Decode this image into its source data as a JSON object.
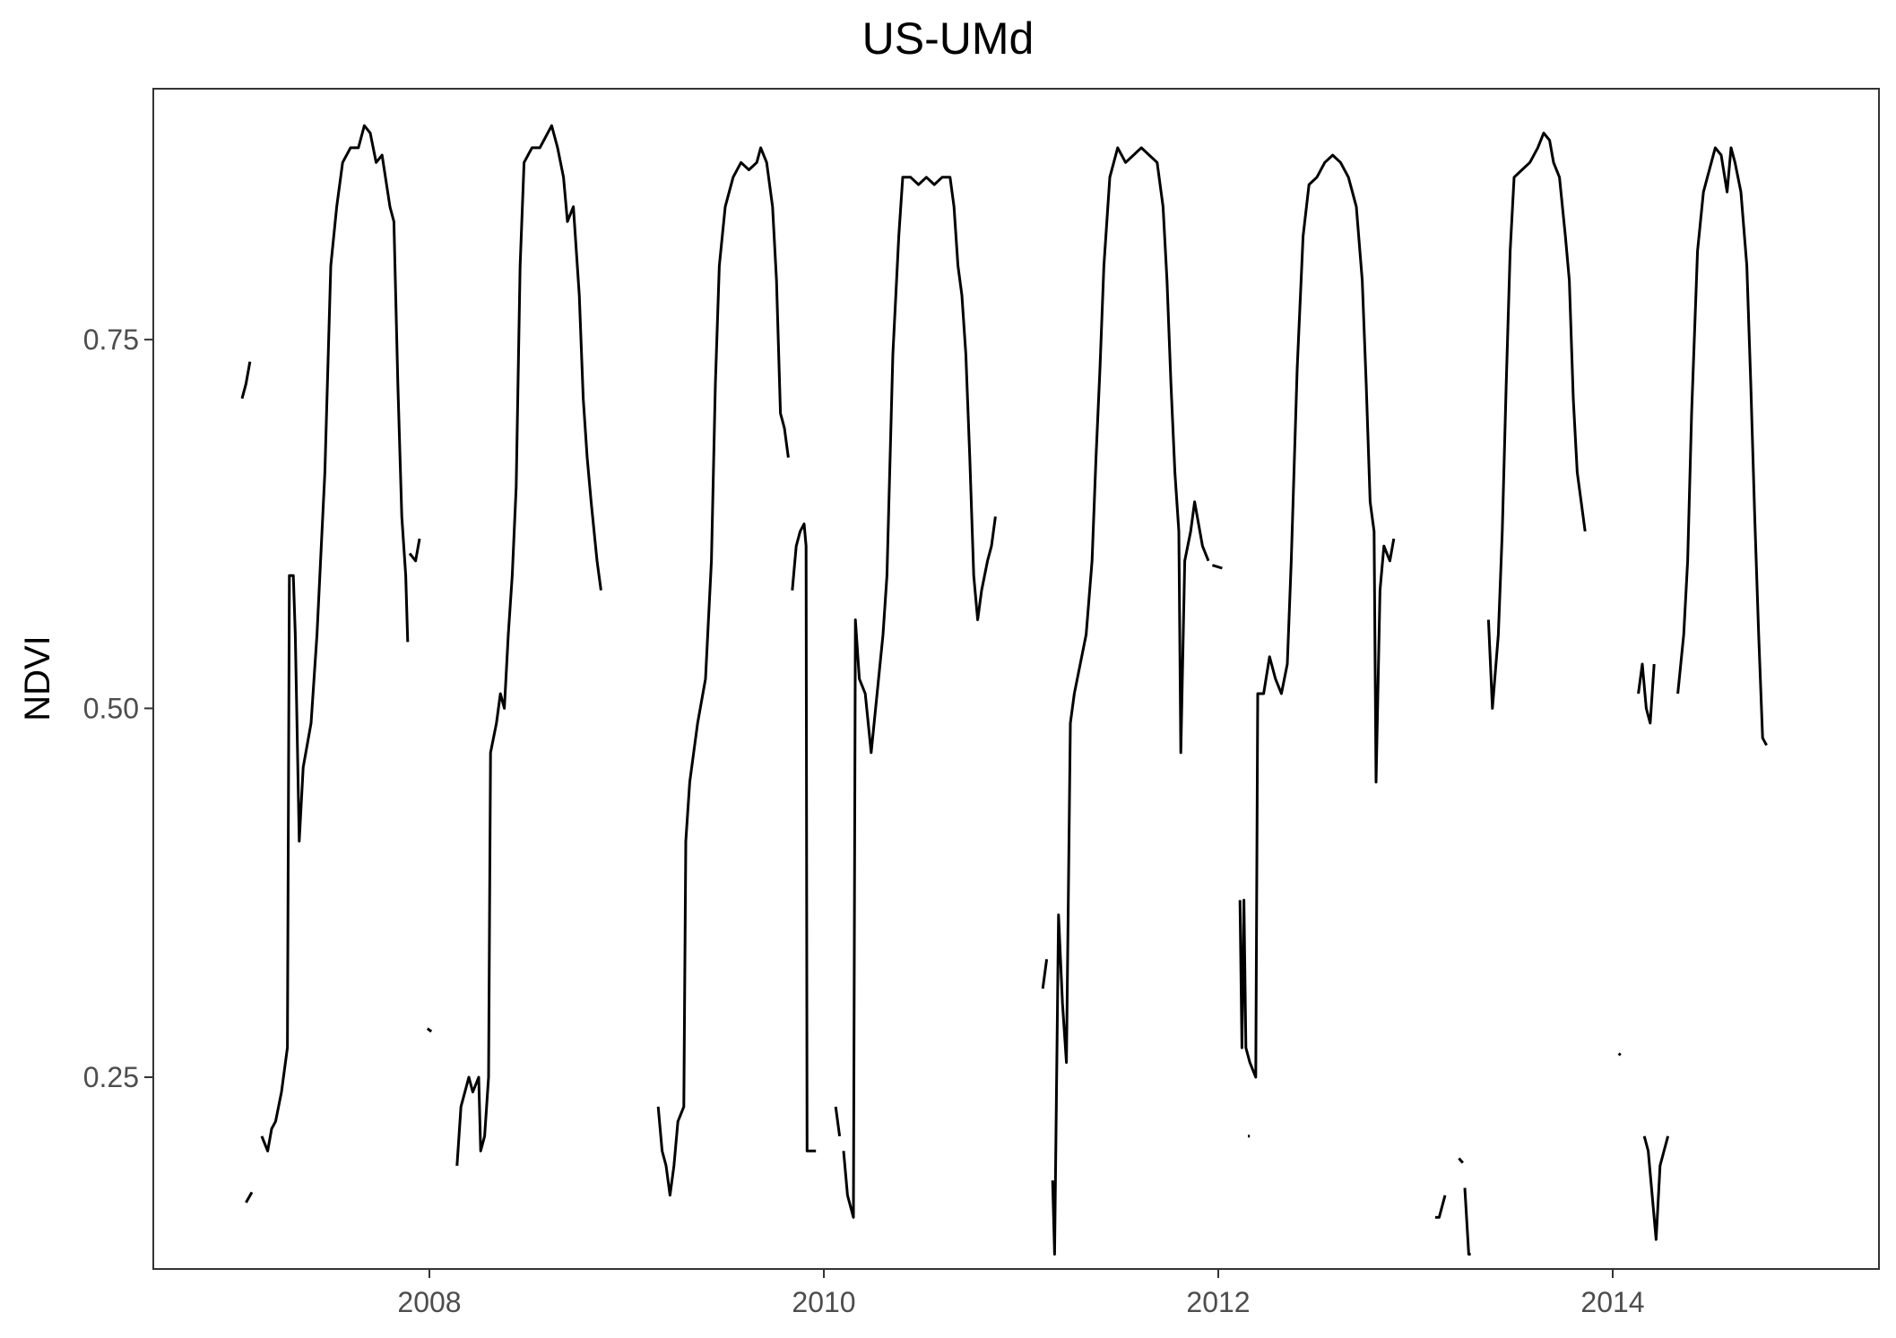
{
  "chart_data": {
    "type": "line",
    "title": "US-UMd",
    "xlabel": "",
    "ylabel": "NDVI",
    "x_ticks": [
      "2008",
      "2010",
      "2012",
      "2014"
    ],
    "y_ticks": [
      "0.25",
      "0.50",
      "0.75"
    ],
    "xlim": [
      2006.6,
      2015.35
    ],
    "ylim": [
      0.12,
      0.92
    ],
    "grid": false,
    "series": [
      {
        "color": "#000000",
        "segments": [
          [
            [
              2007.05,
              0.71
            ],
            [
              2007.07,
              0.72
            ],
            [
              2007.09,
              0.735
            ]
          ],
          [
            [
              2007.07,
              0.165
            ],
            [
              2007.1,
              0.172
            ]
          ],
          [
            [
              2007.15,
              0.21
            ],
            [
              2007.18,
              0.2
            ],
            [
              2007.2,
              0.215
            ],
            [
              2007.22,
              0.22
            ],
            [
              2007.25,
              0.24
            ],
            [
              2007.28,
              0.27
            ],
            [
              2007.29,
              0.59
            ],
            [
              2007.31,
              0.59
            ],
            [
              2007.32,
              0.55
            ],
            [
              2007.34,
              0.41
            ],
            [
              2007.36,
              0.46
            ],
            [
              2007.4,
              0.49
            ],
            [
              2007.43,
              0.55
            ],
            [
              2007.47,
              0.66
            ],
            [
              2007.5,
              0.8
            ],
            [
              2007.53,
              0.84
            ],
            [
              2007.56,
              0.87
            ],
            [
              2007.6,
              0.88
            ],
            [
              2007.64,
              0.88
            ],
            [
              2007.67,
              0.895
            ],
            [
              2007.7,
              0.89
            ],
            [
              2007.73,
              0.87
            ],
            [
              2007.76,
              0.875
            ],
            [
              2007.8,
              0.84
            ],
            [
              2007.82,
              0.83
            ],
            [
              2007.84,
              0.72
            ],
            [
              2007.86,
              0.63
            ],
            [
              2007.88,
              0.59
            ],
            [
              2007.89,
              0.545
            ]
          ],
          [
            [
              2007.9,
              0.605
            ],
            [
              2007.93,
              0.6
            ],
            [
              2007.95,
              0.615
            ]
          ],
          [
            [
              2007.99,
              0.283
            ],
            [
              2008.01,
              0.281
            ]
          ],
          [
            [
              2008.14,
              0.19
            ],
            [
              2008.16,
              0.23
            ],
            [
              2008.18,
              0.24
            ],
            [
              2008.2,
              0.25
            ],
            [
              2008.22,
              0.24
            ],
            [
              2008.25,
              0.25
            ],
            [
              2008.26,
              0.2
            ],
            [
              2008.28,
              0.21
            ],
            [
              2008.3,
              0.25
            ],
            [
              2008.31,
              0.47
            ],
            [
              2008.34,
              0.49
            ],
            [
              2008.36,
              0.51
            ],
            [
              2008.38,
              0.5
            ],
            [
              2008.4,
              0.55
            ],
            [
              2008.42,
              0.59
            ],
            [
              2008.44,
              0.65
            ],
            [
              2008.46,
              0.8
            ],
            [
              2008.48,
              0.87
            ],
            [
              2008.52,
              0.88
            ],
            [
              2008.56,
              0.88
            ],
            [
              2008.6,
              0.89
            ],
            [
              2008.62,
              0.895
            ],
            [
              2008.65,
              0.88
            ],
            [
              2008.68,
              0.86
            ],
            [
              2008.7,
              0.83
            ],
            [
              2008.73,
              0.84
            ],
            [
              2008.76,
              0.78
            ],
            [
              2008.78,
              0.71
            ],
            [
              2008.8,
              0.67
            ],
            [
              2008.82,
              0.64
            ],
            [
              2008.85,
              0.6
            ],
            [
              2008.87,
              0.58
            ]
          ],
          [
            [
              2009.16,
              0.23
            ],
            [
              2009.18,
              0.2
            ],
            [
              2009.2,
              0.19
            ],
            [
              2009.22,
              0.17
            ],
            [
              2009.24,
              0.19
            ],
            [
              2009.26,
              0.22
            ],
            [
              2009.29,
              0.23
            ],
            [
              2009.3,
              0.41
            ],
            [
              2009.32,
              0.45
            ],
            [
              2009.36,
              0.49
            ],
            [
              2009.4,
              0.52
            ],
            [
              2009.43,
              0.6
            ],
            [
              2009.45,
              0.72
            ],
            [
              2009.47,
              0.8
            ],
            [
              2009.5,
              0.84
            ],
            [
              2009.54,
              0.86
            ],
            [
              2009.58,
              0.87
            ],
            [
              2009.62,
              0.865
            ],
            [
              2009.66,
              0.87
            ],
            [
              2009.68,
              0.88
            ],
            [
              2009.71,
              0.87
            ],
            [
              2009.74,
              0.84
            ],
            [
              2009.76,
              0.79
            ],
            [
              2009.78,
              0.7
            ],
            [
              2009.8,
              0.69
            ],
            [
              2009.82,
              0.67
            ]
          ],
          [
            [
              2009.84,
              0.58
            ],
            [
              2009.86,
              0.61
            ],
            [
              2009.88,
              0.62
            ],
            [
              2009.9,
              0.625
            ],
            [
              2009.91,
              0.61
            ],
            [
              2009.915,
              0.2
            ],
            [
              2009.96,
              0.2
            ]
          ],
          [
            [
              2010.06,
              0.23
            ],
            [
              2010.08,
              0.21
            ]
          ],
          [
            [
              2010.1,
              0.2
            ],
            [
              2010.12,
              0.17
            ],
            [
              2010.15,
              0.155
            ],
            [
              2010.16,
              0.56
            ],
            [
              2010.18,
              0.52
            ],
            [
              2010.21,
              0.51
            ],
            [
              2010.24,
              0.47
            ],
            [
              2010.27,
              0.51
            ],
            [
              2010.3,
              0.55
            ],
            [
              2010.32,
              0.59
            ],
            [
              2010.35,
              0.74
            ],
            [
              2010.38,
              0.82
            ],
            [
              2010.4,
              0.86
            ],
            [
              2010.44,
              0.86
            ],
            [
              2010.48,
              0.855
            ],
            [
              2010.52,
              0.86
            ],
            [
              2010.56,
              0.855
            ],
            [
              2010.6,
              0.86
            ],
            [
              2010.64,
              0.86
            ],
            [
              2010.66,
              0.84
            ],
            [
              2010.68,
              0.8
            ],
            [
              2010.7,
              0.78
            ],
            [
              2010.72,
              0.74
            ],
            [
              2010.74,
              0.67
            ],
            [
              2010.76,
              0.59
            ],
            [
              2010.78,
              0.56
            ],
            [
              2010.8,
              0.58
            ],
            [
              2010.83,
              0.6
            ],
            [
              2010.85,
              0.61
            ],
            [
              2010.87,
              0.63
            ]
          ],
          [
            [
              2011.11,
              0.31
            ],
            [
              2011.13,
              0.33
            ]
          ],
          [
            [
              2011.16,
              0.18
            ],
            [
              2011.17,
              0.13
            ],
            [
              2011.19,
              0.36
            ],
            [
              2011.21,
              0.3
            ],
            [
              2011.23,
              0.26
            ],
            [
              2011.25,
              0.49
            ],
            [
              2011.27,
              0.51
            ],
            [
              2011.3,
              0.53
            ],
            [
              2011.33,
              0.55
            ],
            [
              2011.36,
              0.6
            ],
            [
              2011.38,
              0.67
            ],
            [
              2011.4,
              0.73
            ],
            [
              2011.42,
              0.8
            ],
            [
              2011.45,
              0.86
            ],
            [
              2011.49,
              0.88
            ],
            [
              2011.53,
              0.87
            ],
            [
              2011.57,
              0.875
            ],
            [
              2011.61,
              0.88
            ],
            [
              2011.65,
              0.875
            ],
            [
              2011.69,
              0.87
            ],
            [
              2011.72,
              0.84
            ],
            [
              2011.74,
              0.79
            ],
            [
              2011.76,
              0.72
            ],
            [
              2011.78,
              0.66
            ],
            [
              2011.8,
              0.62
            ],
            [
              2011.81,
              0.47
            ],
            [
              2011.83,
              0.6
            ],
            [
              2011.86,
              0.62
            ],
            [
              2011.88,
              0.64
            ],
            [
              2011.92,
              0.61
            ],
            [
              2011.95,
              0.6
            ]
          ],
          [
            [
              2011.97,
              0.597
            ],
            [
              2012.02,
              0.595
            ]
          ],
          [
            [
              2012.11,
              0.37
            ],
            [
              2012.12,
              0.27
            ],
            [
              2012.13,
              0.37
            ],
            [
              2012.14,
              0.27
            ],
            [
              2012.16,
              0.26
            ],
            [
              2012.19,
              0.25
            ],
            [
              2012.2,
              0.51
            ],
            [
              2012.23,
              0.51
            ],
            [
              2012.26,
              0.535
            ],
            [
              2012.29,
              0.52
            ],
            [
              2012.32,
              0.51
            ],
            [
              2012.35,
              0.53
            ],
            [
              2012.37,
              0.6
            ],
            [
              2012.4,
              0.73
            ],
            [
              2012.43,
              0.82
            ],
            [
              2012.46,
              0.855
            ],
            [
              2012.5,
              0.86
            ],
            [
              2012.54,
              0.87
            ],
            [
              2012.58,
              0.875
            ],
            [
              2012.62,
              0.87
            ],
            [
              2012.66,
              0.86
            ],
            [
              2012.7,
              0.84
            ],
            [
              2012.73,
              0.79
            ],
            [
              2012.75,
              0.72
            ],
            [
              2012.77,
              0.64
            ],
            [
              2012.79,
              0.62
            ],
            [
              2012.8,
              0.45
            ],
            [
              2012.82,
              0.58
            ],
            [
              2012.84,
              0.61
            ],
            [
              2012.87,
              0.6
            ],
            [
              2012.89,
              0.615
            ]
          ],
          [
            [
              2012.15,
              0.21
            ],
            [
              2012.16,
              0.21
            ]
          ],
          [
            [
              2013.1,
              0.155
            ],
            [
              2013.12,
              0.155
            ],
            [
              2013.15,
              0.17
            ]
          ],
          [
            [
              2013.22,
              0.195
            ],
            [
              2013.24,
              0.192
            ]
          ],
          [
            [
              2013.25,
              0.175
            ],
            [
              2013.27,
              0.13
            ],
            [
              2013.28,
              0.13
            ]
          ],
          [
            [
              2013.37,
              0.56
            ],
            [
              2013.39,
              0.5
            ],
            [
              2013.42,
              0.55
            ],
            [
              2013.44,
              0.62
            ],
            [
              2013.46,
              0.72
            ],
            [
              2013.48,
              0.81
            ],
            [
              2013.5,
              0.86
            ],
            [
              2013.54,
              0.865
            ],
            [
              2013.58,
              0.87
            ],
            [
              2013.62,
              0.88
            ],
            [
              2013.65,
              0.89
            ],
            [
              2013.68,
              0.885
            ],
            [
              2013.7,
              0.87
            ],
            [
              2013.73,
              0.86
            ],
            [
              2013.76,
              0.82
            ],
            [
              2013.78,
              0.79
            ],
            [
              2013.8,
              0.71
            ],
            [
              2013.82,
              0.66
            ],
            [
              2013.84,
              0.64
            ],
            [
              2013.86,
              0.62
            ]
          ],
          [
            [
              2014.03,
              0.266
            ],
            [
              2014.04,
              0.265
            ]
          ],
          [
            [
              2014.13,
              0.51
            ],
            [
              2014.15,
              0.53
            ],
            [
              2014.17,
              0.5
            ],
            [
              2014.19,
              0.49
            ],
            [
              2014.21,
              0.53
            ]
          ],
          [
            [
              2014.16,
              0.21
            ],
            [
              2014.18,
              0.2
            ],
            [
              2014.2,
              0.17
            ],
            [
              2014.22,
              0.14
            ],
            [
              2014.24,
              0.19
            ],
            [
              2014.26,
              0.2
            ],
            [
              2014.28,
              0.21
            ]
          ],
          [
            [
              2014.33,
              0.51
            ],
            [
              2014.36,
              0.55
            ],
            [
              2014.38,
              0.6
            ],
            [
              2014.4,
              0.7
            ],
            [
              2014.43,
              0.81
            ],
            [
              2014.46,
              0.85
            ],
            [
              2014.5,
              0.87
            ],
            [
              2014.52,
              0.88
            ],
            [
              2014.55,
              0.875
            ],
            [
              2014.58,
              0.85
            ],
            [
              2014.6,
              0.88
            ],
            [
              2014.62,
              0.87
            ],
            [
              2014.65,
              0.85
            ],
            [
              2014.68,
              0.8
            ],
            [
              2014.7,
              0.72
            ],
            [
              2014.72,
              0.63
            ],
            [
              2014.74,
              0.55
            ],
            [
              2014.76,
              0.48
            ],
            [
              2014.78,
              0.475
            ]
          ]
        ]
      }
    ]
  }
}
